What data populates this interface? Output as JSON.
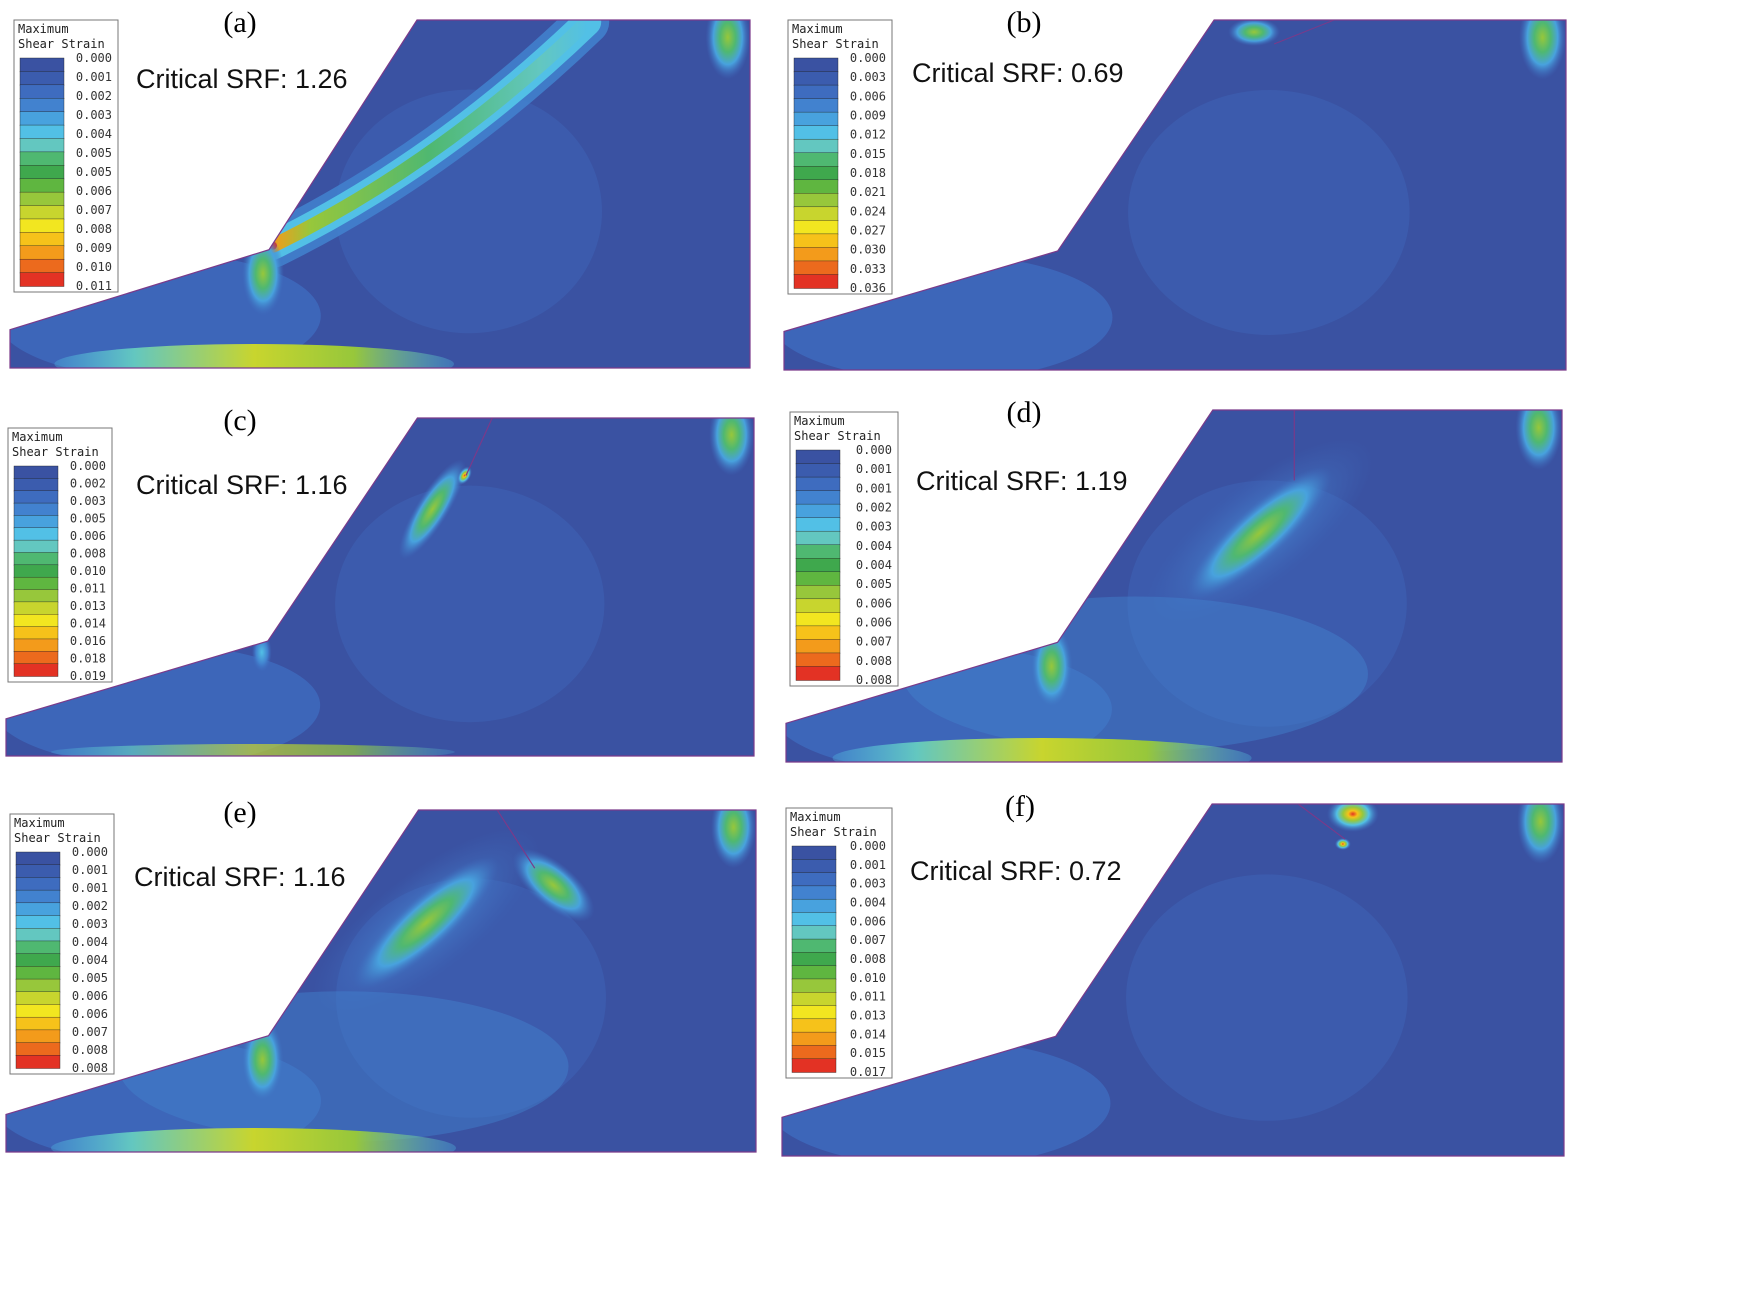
{
  "legend_title": [
    "Maximum",
    "Shear Strain"
  ],
  "colors": {
    "background_blue": "#3a52a2",
    "outline": "#7a3a8a",
    "legend_scale": [
      "#3a52a2",
      "#3b5cae",
      "#3e6cbf",
      "#4282cf",
      "#48a2de",
      "#52c0e6",
      "#63c7c0",
      "#4fb871",
      "#3fa84d",
      "#5fb640",
      "#97c73b",
      "#c8d52e",
      "#f2e620",
      "#f6c21a",
      "#f39b1b",
      "#ec6a1d",
      "#e33224"
    ]
  },
  "panels": [
    {
      "label": "(a)",
      "srf_text": "Critical SRF: 1.26",
      "legend_values": [
        "0.000",
        "0.001",
        "0.002",
        "0.003",
        "0.004",
        "0.005",
        "0.005",
        "0.006",
        "0.007",
        "0.008",
        "0.009",
        "0.010",
        "0.011"
      ],
      "features": [
        "long-slip-band",
        "toe-bulb",
        "base-band"
      ]
    },
    {
      "label": "(b)",
      "srf_text": "Critical SRF: 0.69",
      "legend_values": [
        "0.000",
        "0.003",
        "0.006",
        "0.009",
        "0.012",
        "0.015",
        "0.018",
        "0.021",
        "0.024",
        "0.027",
        "0.030",
        "0.033",
        "0.036"
      ],
      "features": [
        "crest-spot"
      ]
    },
    {
      "label": "(c)",
      "srf_text": "Critical SRF: 1.16",
      "legend_values": [
        "0.000",
        "0.002",
        "0.003",
        "0.005",
        "0.006",
        "0.008",
        "0.010",
        "0.011",
        "0.013",
        "0.014",
        "0.016",
        "0.018",
        "0.019"
      ],
      "features": [
        "short-band",
        "toe-small",
        "base-faint",
        "crack"
      ]
    },
    {
      "label": "(d)",
      "srf_text": "Critical SRF: 1.19",
      "legend_values": [
        "0.000",
        "0.001",
        "0.001",
        "0.002",
        "0.003",
        "0.004",
        "0.004",
        "0.005",
        "0.006",
        "0.006",
        "0.007",
        "0.008",
        "0.008"
      ],
      "features": [
        "mid-band",
        "toe-bulb",
        "base-band",
        "crack",
        "halo"
      ]
    },
    {
      "label": "(e)",
      "srf_text": "Critical SRF: 1.16",
      "legend_values": [
        "0.000",
        "0.001",
        "0.001",
        "0.002",
        "0.003",
        "0.004",
        "0.004",
        "0.005",
        "0.006",
        "0.006",
        "0.007",
        "0.008",
        "0.008"
      ],
      "features": [
        "mid-band",
        "toe-bulb",
        "base-band",
        "crack",
        "halo",
        "crack-blob"
      ]
    },
    {
      "label": "(f)",
      "srf_text": "Critical SRF: 0.72",
      "legend_values": [
        "0.000",
        "0.001",
        "0.003",
        "0.004",
        "0.006",
        "0.007",
        "0.008",
        "0.010",
        "0.011",
        "0.013",
        "0.014",
        "0.015",
        "0.017"
      ],
      "features": [
        "crest-v",
        "crack"
      ]
    }
  ]
}
